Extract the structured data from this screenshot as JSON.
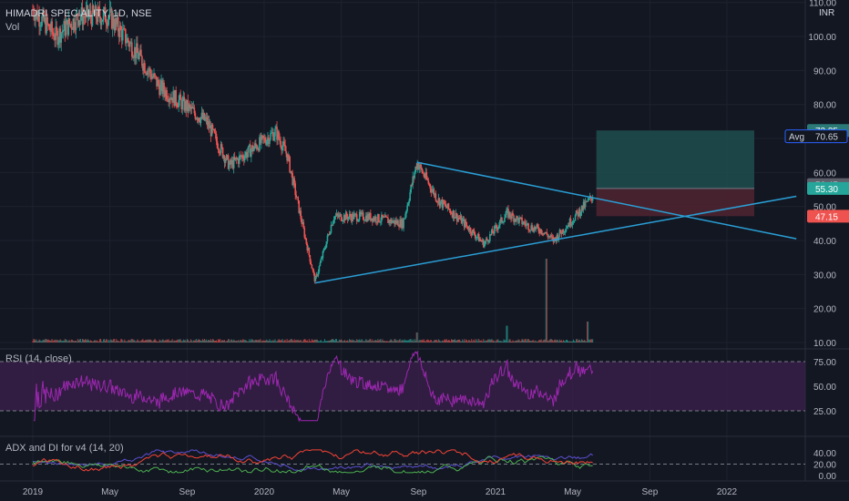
{
  "header": {
    "symbol": "HIMADRI SPECIALITY, 1D, NSE",
    "volume_label": "Vol",
    "currency": "INR"
  },
  "colors": {
    "background": "#131722",
    "up": "#26a69a",
    "down": "#ef5350",
    "trendline": "#2a9fd6",
    "rsi_line": "#9c27b0",
    "rsi_band": "#3a1f4a",
    "adx_line": "#5b4fcf",
    "plus_di": "#4caf50",
    "minus_di": "#f44336",
    "target_zone": "#1e4d4f",
    "stop_zone": "#4d2330",
    "grid": "#1e222d"
  },
  "chart_data": [
    {
      "type": "candlestick",
      "x_ticks": [
        "2019",
        "May",
        "Sep",
        "2020",
        "May",
        "Sep",
        "2021",
        "May",
        "Sep",
        "2022"
      ],
      "y_ticks": [
        10.0,
        20.0,
        30.0,
        40.0,
        50.0,
        60.0,
        70.0,
        80.0,
        90.0,
        100.0,
        110.0
      ],
      "y_tick_labels": [
        "10.00",
        "20.00",
        "30.00",
        "40.00",
        "50.00",
        "60.00",
        "70.00",
        "80.00",
        "90.00",
        "100.00",
        "110.00"
      ],
      "ylim": [
        10,
        112
      ],
      "price_keypoints": [
        {
          "t": 2019.0,
          "p": 108
        },
        {
          "t": 2019.1,
          "p": 100
        },
        {
          "t": 2019.2,
          "p": 106
        },
        {
          "t": 2019.33,
          "p": 106
        },
        {
          "t": 2019.45,
          "p": 95
        },
        {
          "t": 2019.55,
          "p": 85
        },
        {
          "t": 2019.65,
          "p": 80
        },
        {
          "t": 2019.75,
          "p": 75
        },
        {
          "t": 2019.85,
          "p": 62
        },
        {
          "t": 2019.95,
          "p": 67
        },
        {
          "t": 2020.05,
          "p": 72
        },
        {
          "t": 2020.1,
          "p": 65
        },
        {
          "t": 2020.18,
          "p": 40
        },
        {
          "t": 2020.22,
          "p": 28
        },
        {
          "t": 2020.3,
          "p": 47
        },
        {
          "t": 2020.45,
          "p": 47
        },
        {
          "t": 2020.6,
          "p": 45
        },
        {
          "t": 2020.66,
          "p": 63
        },
        {
          "t": 2020.75,
          "p": 52
        },
        {
          "t": 2020.85,
          "p": 46
        },
        {
          "t": 2020.95,
          "p": 39
        },
        {
          "t": 2021.05,
          "p": 48
        },
        {
          "t": 2021.15,
          "p": 44
        },
        {
          "t": 2021.2,
          "p": 43
        },
        {
          "t": 2021.25,
          "p": 40
        },
        {
          "t": 2021.33,
          "p": 46
        },
        {
          "t": 2021.42,
          "p": 53
        }
      ],
      "position": {
        "target": 72.35,
        "average": 70.65,
        "entry": 55.3,
        "stop": 47.15,
        "last": 56.45
      },
      "price_labels": {
        "target": "72.35",
        "avg_label": "Avg",
        "avg": "70.65",
        "last": "56.45",
        "entry": "55.30",
        "stop": "47.15"
      },
      "trendlines": [
        {
          "name": "upper",
          "from": {
            "t": 2020.66,
            "p": 63
          },
          "to": {
            "t": 2022.3,
            "p": 40.5
          }
        },
        {
          "name": "lower",
          "from": {
            "t": 2020.22,
            "p": 27.5
          },
          "to": {
            "t": 2022.3,
            "p": 53
          }
        }
      ],
      "volume_spikes": [
        {
          "t": 2021.22,
          "v": 1.0
        },
        {
          "t": 2020.66,
          "v": 0.12
        },
        {
          "t": 2021.05,
          "v": 0.2
        },
        {
          "t": 2021.4,
          "v": 0.25
        }
      ]
    },
    {
      "type": "line",
      "title": "RSI (14, close)",
      "y_ticks": [
        25.0,
        50.0,
        75.0
      ],
      "y_tick_labels": [
        "25.00",
        "50.00",
        "75.00"
      ],
      "ylim": [
        20,
        80
      ],
      "bands": [
        30,
        70
      ],
      "series": [
        {
          "name": "RSI",
          "values_range": [
            22,
            78
          ]
        }
      ]
    },
    {
      "type": "line",
      "title": "ADX and DI for v4 (14, 20)",
      "y_ticks": [
        0.0,
        20.0,
        40.0
      ],
      "y_tick_labels": [
        "0.00",
        "20.00",
        "40.00"
      ],
      "ylim": [
        0,
        50
      ],
      "series": [
        {
          "name": "ADX"
        },
        {
          "name": "+DI"
        },
        {
          "name": "-DI"
        }
      ]
    }
  ]
}
